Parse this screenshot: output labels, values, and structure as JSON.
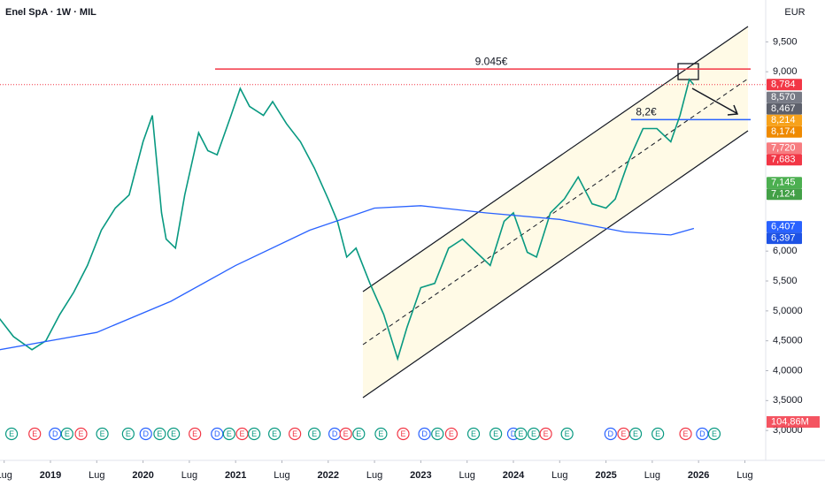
{
  "chart_data": {
    "type": "line",
    "title": "Enel SpA · 1W · MIL",
    "currency": "EUR",
    "xlim": [
      2018.455,
      2026.725
    ],
    "ylim": [
      2.5,
      10.2
    ],
    "grid": false,
    "xticks": [
      {
        "value": 2018.5,
        "label": "Lug"
      },
      {
        "value": 2019,
        "label": "2019"
      },
      {
        "value": 2019.5,
        "label": "Lug"
      },
      {
        "value": 2020,
        "label": "2020"
      },
      {
        "value": 2020.5,
        "label": "Lug"
      },
      {
        "value": 2021,
        "label": "2021"
      },
      {
        "value": 2021.5,
        "label": "Lug"
      },
      {
        "value": 2022,
        "label": "2022"
      },
      {
        "value": 2022.5,
        "label": "Lug"
      },
      {
        "value": 2023,
        "label": "2023"
      },
      {
        "value": 2023.5,
        "label": "Lug"
      },
      {
        "value": 2024,
        "label": "2024"
      },
      {
        "value": 2024.5,
        "label": "Lug"
      },
      {
        "value": 2025,
        "label": "2025"
      },
      {
        "value": 2025.5,
        "label": "Lug"
      },
      {
        "value": 2026,
        "label": "2026"
      },
      {
        "value": 2026.5,
        "label": "Lug"
      }
    ],
    "yticks": [
      {
        "value": 9.5,
        "label": "9,500"
      },
      {
        "value": 9,
        "label": "9,000"
      },
      {
        "value": 6,
        "label": "6,000"
      },
      {
        "value": 5.5,
        "label": "5,500"
      },
      {
        "value": 5,
        "label": "5,0000"
      },
      {
        "value": 4.5,
        "label": "4,5000"
      },
      {
        "value": 4,
        "label": "4,0000"
      },
      {
        "value": 3.5,
        "label": "3,5000"
      },
      {
        "value": 3,
        "label": "3,0000"
      }
    ],
    "series": [
      {
        "color": "#089981",
        "x": [
          2018.45,
          2018.6,
          2018.8,
          2018.95,
          2019.1,
          2019.25,
          2019.4,
          2019.55,
          2019.7,
          2019.85,
          2020.0,
          2020.1,
          2020.2,
          2020.25,
          2020.35,
          2020.45,
          2020.6,
          2020.7,
          2020.8,
          2020.95,
          2021.05,
          2021.15,
          2021.3,
          2021.4,
          2021.55,
          2021.7,
          2021.85,
          2022.0,
          2022.1,
          2022.2,
          2022.3,
          2022.45,
          2022.6,
          2022.75,
          2022.85,
          2023.0,
          2023.15,
          2023.3,
          2023.45,
          2023.6,
          2023.75,
          2023.9,
          2024.0,
          2024.15,
          2024.25,
          2024.4,
          2024.55,
          2024.7,
          2024.85,
          2025.0,
          2025.1,
          2025.25,
          2025.4,
          2025.55,
          2025.7,
          2025.8,
          2025.9,
          2025.95
        ],
        "values": [
          4.87,
          4.57,
          4.35,
          4.5,
          4.94,
          5.31,
          5.76,
          6.35,
          6.72,
          6.94,
          7.83,
          8.27,
          6.64,
          6.2,
          6.05,
          6.94,
          7.98,
          7.68,
          7.61,
          8.27,
          8.72,
          8.42,
          8.27,
          8.5,
          8.13,
          7.83,
          7.39,
          6.87,
          6.5,
          5.9,
          6.05,
          5.46,
          4.94,
          4.2,
          4.72,
          5.39,
          5.46,
          6.05,
          6.2,
          5.98,
          5.76,
          6.5,
          6.64,
          5.98,
          5.9,
          6.64,
          6.87,
          7.24,
          6.79,
          6.72,
          6.87,
          7.53,
          8.05,
          8.05,
          7.83,
          8.27,
          8.87,
          8.78
        ]
      },
      {
        "color": "#2962ff",
        "x": [
          2018.45,
          2019.5,
          2020.3,
          2021.0,
          2021.8,
          2022.5,
          2023.0,
          2023.7,
          2024.5,
          2025.2,
          2025.7,
          2025.95
        ],
        "values": [
          4.35,
          4.64,
          5.16,
          5.76,
          6.35,
          6.72,
          6.76,
          6.64,
          6.53,
          6.32,
          6.27,
          6.38
        ]
      }
    ],
    "levels": [
      {
        "value": 9.045,
        "label": "9.045€",
        "color": "#f23645"
      },
      {
        "value": 8.2,
        "label": "8,2€",
        "color": "#2962ff"
      }
    ],
    "price_labels": [
      {
        "value": 8.784,
        "label": "8,784",
        "color": "#f23645"
      },
      {
        "value": 8.57,
        "label": "8,570",
        "color": "#787b86"
      },
      {
        "value": 8.467,
        "label": "8,467",
        "color": "#5d606b"
      },
      {
        "value": 8.214,
        "label": "8,214",
        "color": "#f7a21b"
      },
      {
        "value": 8.174,
        "label": "8,174",
        "color": "#ef8a00"
      },
      {
        "value": 7.72,
        "label": "7,720",
        "color": "#f77c80"
      },
      {
        "value": 7.683,
        "label": "7,683",
        "color": "#f23645"
      },
      {
        "value": 7.145,
        "label": "7,145",
        "color": "#4caf50"
      },
      {
        "value": 7.124,
        "label": "7,124",
        "color": "#43a047"
      },
      {
        "value": 6.407,
        "label": "6,407",
        "color": "#2962ff"
      },
      {
        "value": 6.397,
        "label": "6,397",
        "color": "#1e53e5"
      }
    ],
    "volume_label": "104,86M",
    "events": [
      {
        "x": 2018.58,
        "label": "E"
      },
      {
        "x": 2018.83,
        "label": "E"
      },
      {
        "x": 2019.05,
        "label": "D"
      },
      {
        "x": 2019.18,
        "label": "E"
      },
      {
        "x": 2019.33,
        "label": "E"
      },
      {
        "x": 2019.56,
        "label": "E"
      },
      {
        "x": 2019.84,
        "label": "E"
      },
      {
        "x": 2020.03,
        "label": "D"
      },
      {
        "x": 2020.18,
        "label": "E"
      },
      {
        "x": 2020.33,
        "label": "E"
      },
      {
        "x": 2020.56,
        "label": "E"
      },
      {
        "x": 2020.8,
        "label": "D"
      },
      {
        "x": 2020.93,
        "label": "E"
      },
      {
        "x": 2021.07,
        "label": "E"
      },
      {
        "x": 2021.2,
        "label": "E"
      },
      {
        "x": 2021.42,
        "label": "E"
      },
      {
        "x": 2021.64,
        "label": "E"
      },
      {
        "x": 2021.85,
        "label": "E"
      },
      {
        "x": 2022.07,
        "label": "D"
      },
      {
        "x": 2022.19,
        "label": "E"
      },
      {
        "x": 2022.33,
        "label": "E"
      },
      {
        "x": 2022.57,
        "label": "E"
      },
      {
        "x": 2022.81,
        "label": "E"
      },
      {
        "x": 2023.04,
        "label": "D"
      },
      {
        "x": 2023.18,
        "label": "E"
      },
      {
        "x": 2023.33,
        "label": "E"
      },
      {
        "x": 2023.57,
        "label": "E"
      },
      {
        "x": 2023.81,
        "label": "E"
      },
      {
        "x": 2024.0,
        "label": "D"
      },
      {
        "x": 2024.08,
        "label": "E"
      },
      {
        "x": 2024.22,
        "label": "E"
      },
      {
        "x": 2024.35,
        "label": "E"
      },
      {
        "x": 2024.58,
        "label": "E"
      },
      {
        "x": 2025.05,
        "label": "D"
      },
      {
        "x": 2025.19,
        "label": "E"
      },
      {
        "x": 2025.32,
        "label": "E"
      },
      {
        "x": 2025.56,
        "label": "E"
      },
      {
        "x": 2025.86,
        "label": "E"
      },
      {
        "x": 2026.04,
        "label": "D"
      },
      {
        "x": 2026.17,
        "label": "E"
      }
    ]
  }
}
